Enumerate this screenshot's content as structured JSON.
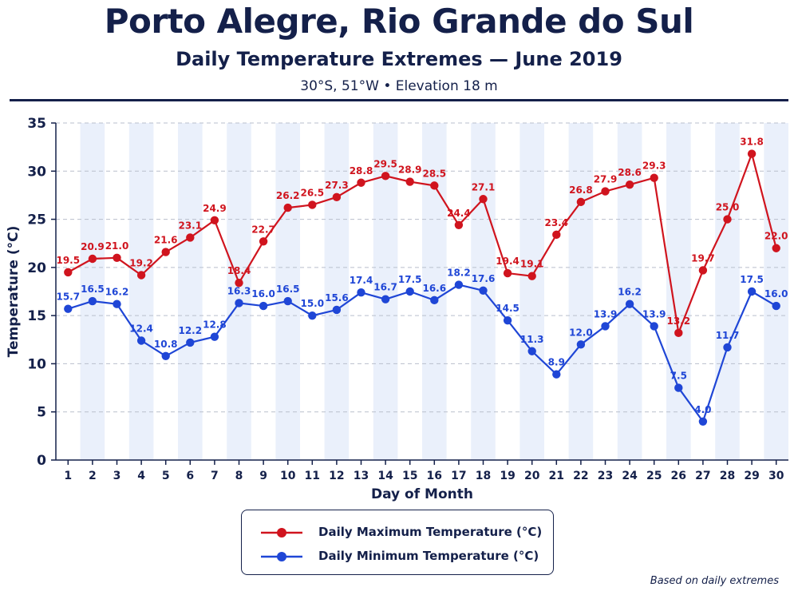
{
  "header": {
    "title": "Porto Alegre, Rio Grande do Sul",
    "subtitle": "Daily Temperature Extremes — June 2019",
    "location": "30°S, 51°W • Elevation 18 m"
  },
  "footnote": "Based on daily extremes",
  "colors": {
    "max": "#d0141e",
    "min": "#1f46d6",
    "ink": "#14204a",
    "band": "#eaf0fb"
  },
  "chart_data": {
    "type": "line",
    "xlabel": "Day of Month",
    "ylabel": "Temperature (°C)",
    "ylim": [
      0,
      35
    ],
    "yticks": [
      0,
      5,
      10,
      15,
      20,
      25,
      30,
      35
    ],
    "x": [
      1,
      2,
      3,
      4,
      5,
      6,
      7,
      8,
      9,
      10,
      11,
      12,
      13,
      14,
      15,
      16,
      17,
      18,
      19,
      20,
      21,
      22,
      23,
      24,
      25,
      26,
      27,
      28,
      29,
      30
    ],
    "grid": "horizontal dashed",
    "legend": "bottom-center",
    "series": [
      {
        "name": "Daily Maximum Temperature (°C)",
        "color": "#d0141e",
        "values": [
          19.5,
          20.9,
          21.0,
          19.2,
          21.6,
          23.1,
          24.9,
          18.4,
          22.7,
          26.2,
          26.5,
          27.3,
          28.8,
          29.5,
          28.9,
          28.5,
          24.4,
          27.1,
          19.4,
          19.1,
          23.4,
          26.8,
          27.9,
          28.6,
          29.3,
          13.2,
          19.7,
          25.0,
          31.8,
          22.0
        ]
      },
      {
        "name": "Daily Minimum Temperature (°C)",
        "color": "#1f46d6",
        "values": [
          15.7,
          16.5,
          16.2,
          12.4,
          10.8,
          12.2,
          12.8,
          16.3,
          16.0,
          16.5,
          15.0,
          15.6,
          17.4,
          16.7,
          17.5,
          16.6,
          18.2,
          17.6,
          14.5,
          11.3,
          8.9,
          12.0,
          13.9,
          16.2,
          13.9,
          7.5,
          4.0,
          11.7,
          17.5,
          16.0
        ]
      }
    ]
  }
}
